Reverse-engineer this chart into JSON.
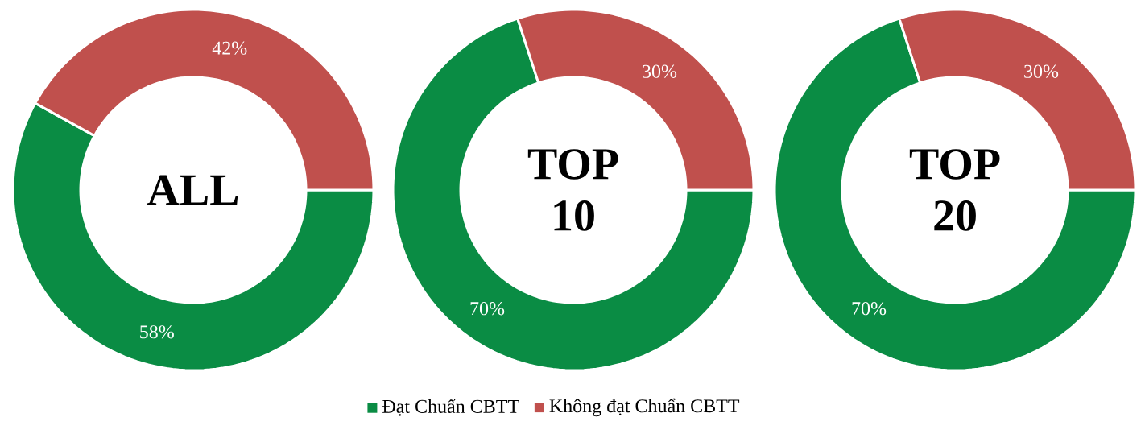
{
  "chart_data": [
    {
      "type": "donut",
      "title": "ALL",
      "categories": [
        null,
        null
      ],
      "values": [
        58,
        42
      ],
      "value_labels": [
        "58%",
        "42%"
      ],
      "colors": [
        "#0a8c44",
        "#c0504d"
      ]
    },
    {
      "type": "donut",
      "title": "TOP 10",
      "categories": [
        "Đạt Chuẩn CBTT",
        "Không đạt Chuẩn CBTT"
      ],
      "values": [
        70,
        30
      ],
      "value_labels": [
        "70%",
        "30%"
      ],
      "colors": [
        "#0a8c44",
        "#c0504d"
      ],
      "legend": "bottom"
    },
    {
      "type": "donut",
      "title": "TOP 20",
      "categories": [
        null,
        null
      ],
      "values": [
        70,
        30
      ],
      "value_labels": [
        "70%",
        "30%"
      ],
      "colors": [
        "#0a8c44",
        "#c0504d"
      ]
    }
  ]
}
